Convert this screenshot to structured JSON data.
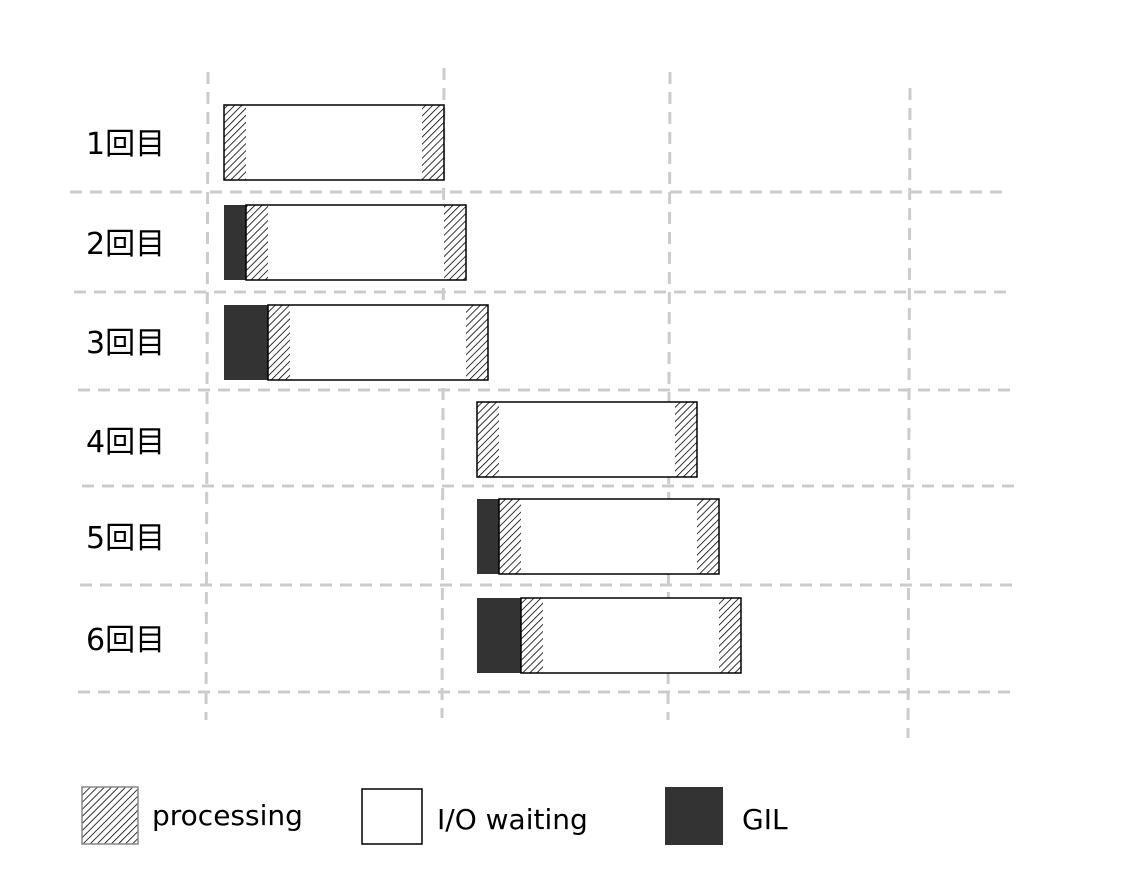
{
  "rows": [
    {
      "label": "1回目",
      "segments": [
        {
          "type": "processing",
          "dur": 1
        },
        {
          "type": "io",
          "dur": 8
        },
        {
          "type": "processing",
          "dur": 1
        }
      ],
      "start": 0
    },
    {
      "label": "2回目",
      "segments": [
        {
          "type": "gil",
          "dur": 1
        },
        {
          "type": "processing",
          "dur": 1
        },
        {
          "type": "io",
          "dur": 8
        },
        {
          "type": "processing",
          "dur": 1
        }
      ],
      "start": 0
    },
    {
      "label": "3回目",
      "segments": [
        {
          "type": "gil",
          "dur": 2
        },
        {
          "type": "processing",
          "dur": 1
        },
        {
          "type": "io",
          "dur": 8
        },
        {
          "type": "processing",
          "dur": 1
        }
      ],
      "start": 0
    },
    {
      "label": "4回目",
      "segments": [
        {
          "type": "processing",
          "dur": 1
        },
        {
          "type": "io",
          "dur": 8
        },
        {
          "type": "processing",
          "dur": 1
        }
      ],
      "start": 11.5
    },
    {
      "label": "5回目",
      "segments": [
        {
          "type": "gil",
          "dur": 1
        },
        {
          "type": "processing",
          "dur": 1
        },
        {
          "type": "io",
          "dur": 8
        },
        {
          "type": "processing",
          "dur": 1
        }
      ],
      "start": 11.5
    },
    {
      "label": "6回目",
      "segments": [
        {
          "type": "gil",
          "dur": 2
        },
        {
          "type": "processing",
          "dur": 1
        },
        {
          "type": "io",
          "dur": 8
        },
        {
          "type": "processing",
          "dur": 1
        }
      ],
      "start": 11.5
    }
  ],
  "legend": [
    {
      "type": "processing",
      "label": "processing"
    },
    {
      "type": "io",
      "label": "I/O waiting"
    },
    {
      "type": "gil",
      "label": "GIL"
    }
  ],
  "colors": {
    "gil": "#333333",
    "io": "#ffffff",
    "grid": "#cccccc",
    "border": "#000000"
  }
}
